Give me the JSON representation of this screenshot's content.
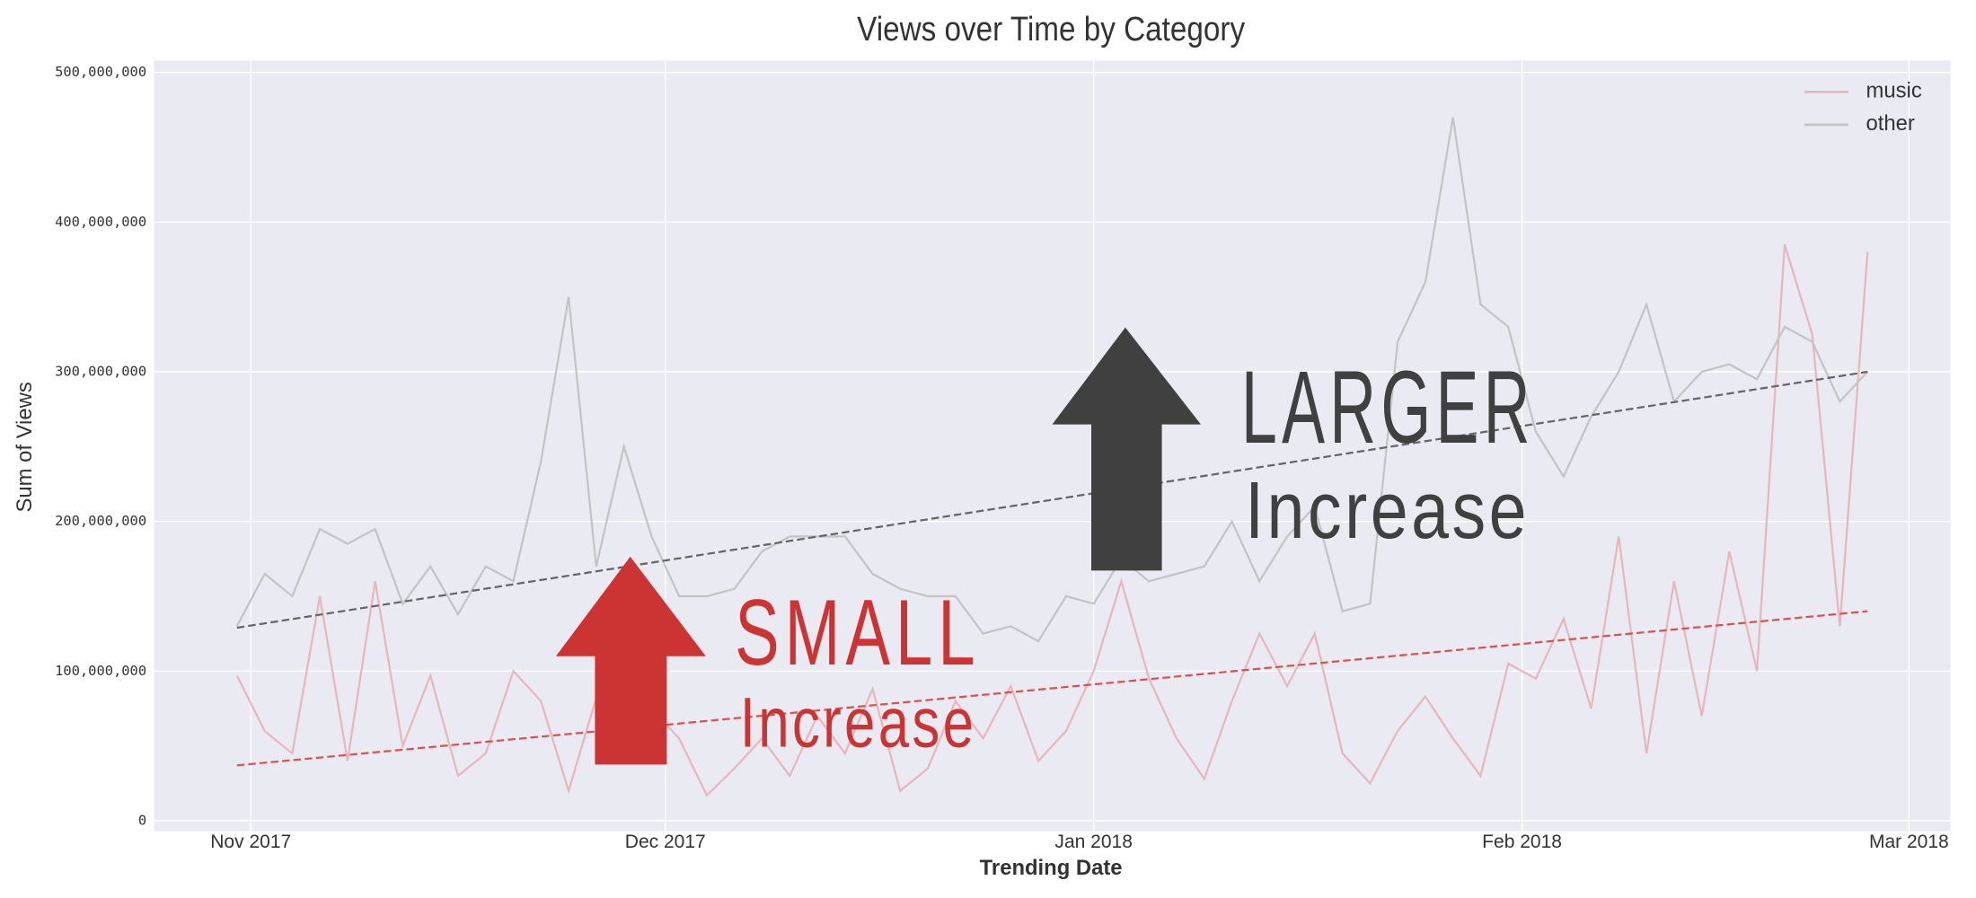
{
  "chart_data": {
    "type": "line",
    "title": "Views over Time by Category",
    "x_label": "Trending Date",
    "y_label": "Sum of Views",
    "x": [
      -1,
      1,
      3,
      5,
      7,
      9,
      11,
      13,
      15,
      17,
      19,
      21,
      23,
      25,
      27,
      29,
      31,
      33,
      35,
      37,
      39,
      41,
      43,
      45,
      47,
      49,
      51,
      53,
      55,
      57,
      59,
      61,
      63,
      65,
      67,
      69,
      71,
      73,
      75,
      77,
      79,
      81,
      83,
      85,
      87,
      89,
      91,
      93,
      95,
      97,
      99,
      101,
      103,
      105,
      107,
      109,
      111,
      113,
      115,
      117
    ],
    "series": [
      {
        "name": "music",
        "color": "#e8b6bb",
        "values": [
          97000000,
          60000000,
          45000000,
          150000000,
          40000000,
          160000000,
          50000000,
          97000000,
          30000000,
          45000000,
          100000000,
          80000000,
          20000000,
          82000000,
          40000000,
          75000000,
          55000000,
          17000000,
          35000000,
          55000000,
          30000000,
          70000000,
          45000000,
          88000000,
          20000000,
          35000000,
          80000000,
          55000000,
          90000000,
          40000000,
          60000000,
          100000000,
          160000000,
          95000000,
          55000000,
          28000000,
          80000000,
          125000000,
          90000000,
          125000000,
          45000000,
          25000000,
          60000000,
          83000000,
          55000000,
          30000000,
          105000000,
          95000000,
          135000000,
          75000000,
          190000000,
          45000000,
          160000000,
          70000000,
          180000000,
          100000000,
          385000000,
          325000000,
          130000000,
          380000000
        ]
      },
      {
        "name": "other",
        "color": "#c4c4c4",
        "values": [
          130000000,
          165000000,
          150000000,
          195000000,
          185000000,
          195000000,
          145000000,
          170000000,
          138000000,
          170000000,
          160000000,
          240000000,
          350000000,
          170000000,
          250000000,
          190000000,
          150000000,
          150000000,
          155000000,
          180000000,
          190000000,
          190000000,
          190000000,
          165000000,
          155000000,
          150000000,
          150000000,
          125000000,
          130000000,
          120000000,
          150000000,
          145000000,
          175000000,
          160000000,
          165000000,
          170000000,
          200000000,
          160000000,
          190000000,
          210000000,
          140000000,
          145000000,
          320000000,
          360000000,
          470000000,
          345000000,
          330000000,
          260000000,
          230000000,
          270000000,
          300000000,
          345000000,
          280000000,
          300000000,
          305000000,
          295000000,
          330000000,
          320000000,
          280000000,
          300000000
        ]
      }
    ],
    "trend_lines": [
      {
        "color": "#d9534f",
        "x": [
          -1,
          117
        ],
        "values": [
          37000000,
          140000000
        ]
      },
      {
        "color": "#666666",
        "x": [
          -1,
          117
        ],
        "values": [
          129000000,
          300000000
        ]
      }
    ],
    "xlim": [
      -7,
      123
    ],
    "xticks": [
      {
        "value": 0,
        "label": "Nov 2017"
      },
      {
        "value": 30,
        "label": "Dec 2017"
      },
      {
        "value": 61,
        "label": "Jan 2018"
      },
      {
        "value": 92,
        "label": "Feb 2018"
      },
      {
        "value": 120,
        "label": "Mar 2018"
      }
    ],
    "ylim": [
      -7000000,
      508000000
    ],
    "yticks": [
      0,
      {
        "value": 100000000,
        "label": "100,000,000"
      },
      {
        "value": 200000000,
        "label": "200,000,000"
      },
      {
        "value": 300000000,
        "label": "300,000,000"
      },
      {
        "value": 400000000,
        "label": "400,000,000"
      },
      {
        "value": 500000000,
        "label": "500,000,000"
      }
    ],
    "grid": true,
    "legend": "upper right",
    "annotations": {
      "small": "SMALL",
      "small_sub": "Increase",
      "larger": "LARGER",
      "larger_sub": "Increase"
    }
  }
}
